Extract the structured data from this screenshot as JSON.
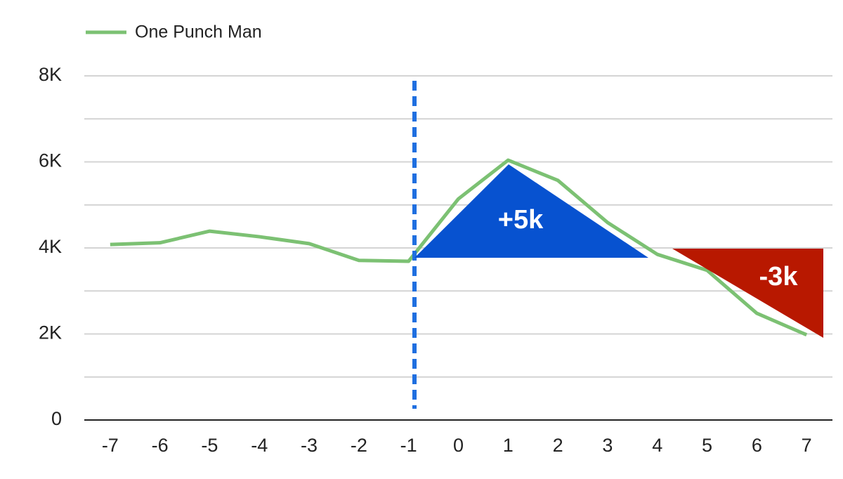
{
  "chart_data": {
    "type": "line",
    "series": [
      {
        "name": "One Punch Man",
        "color": "#7cc173",
        "values": [
          4080,
          4120,
          4390,
          4260,
          4100,
          3710,
          3690,
          5140,
          6040,
          5570,
          4590,
          3850,
          3480,
          2480,
          1980
        ]
      }
    ],
    "x": [
      -7,
      -6,
      -5,
      -4,
      -3,
      -2,
      -1,
      0,
      1,
      2,
      3,
      4,
      5,
      6,
      7
    ],
    "xlim": [
      -7.52,
      7.52
    ],
    "xticks": [
      -7,
      -6,
      -5,
      -4,
      -3,
      -2,
      -1,
      0,
      1,
      2,
      3,
      4,
      5,
      6,
      7
    ],
    "ylim": [
      0,
      8000
    ],
    "yticks": [
      0,
      {
        "value": 2000,
        "label": "2K"
      },
      {
        "value": 4000,
        "label": "4K"
      },
      {
        "value": 6000,
        "label": "6K"
      },
      {
        "value": 8000,
        "label": "8K"
      }
    ],
    "yminor": [
      1000,
      3000,
      5000,
      7000
    ],
    "grid": true,
    "legend": "top-left",
    "annotations": [
      "+5k",
      "-3k"
    ]
  }
}
